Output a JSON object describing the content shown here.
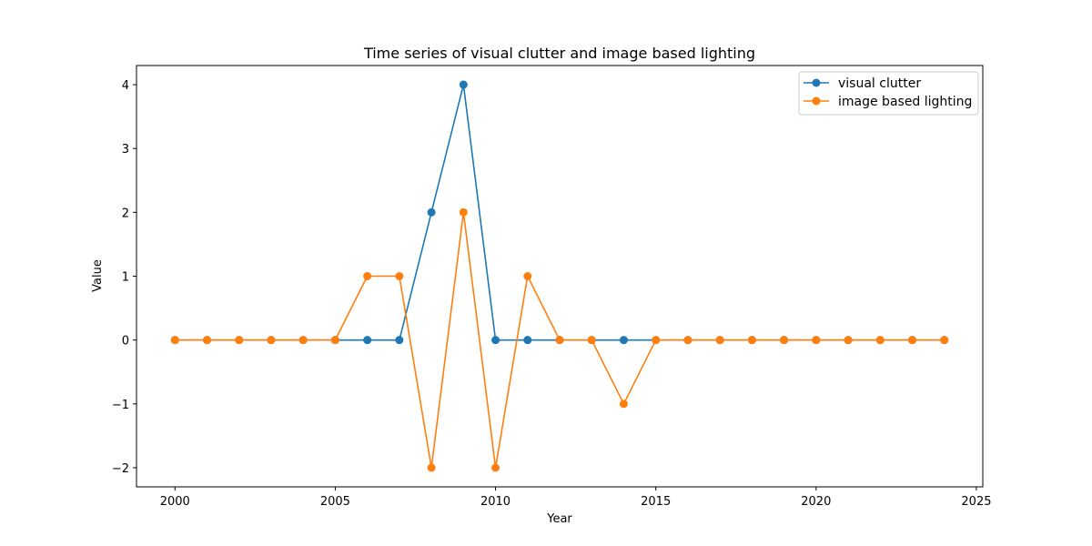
{
  "chart_data": {
    "type": "line",
    "title": "Time series of visual clutter and image based lighting",
    "xlabel": "Year",
    "ylabel": "Value",
    "x": [
      2000,
      2001,
      2002,
      2003,
      2004,
      2005,
      2006,
      2007,
      2008,
      2009,
      2010,
      2011,
      2012,
      2013,
      2014,
      2015,
      2016,
      2017,
      2018,
      2019,
      2020,
      2021,
      2022,
      2023,
      2024
    ],
    "xlim": [
      1998.8,
      2025.2
    ],
    "ylim": [
      -2.3,
      4.3
    ],
    "xticks": [
      2000,
      2005,
      2010,
      2015,
      2020,
      2025
    ],
    "yticks": [
      -2,
      -1,
      0,
      1,
      2,
      3,
      4
    ],
    "xtick_labels": [
      "2000",
      "2005",
      "2010",
      "2015",
      "2020",
      "2025"
    ],
    "ytick_labels": [
      "−2",
      "−1",
      "0",
      "1",
      "2",
      "3",
      "4"
    ],
    "grid": false,
    "legend_position": "top-right",
    "series": [
      {
        "name": "visual clutter",
        "color": "#1f77b4",
        "marker": "circle",
        "values": [
          0,
          0,
          0,
          0,
          0,
          0,
          0,
          0,
          2,
          4,
          0,
          0,
          0,
          0,
          0,
          0,
          0,
          0,
          0,
          0,
          0,
          0,
          0,
          0,
          0
        ]
      },
      {
        "name": "image based lighting",
        "color": "#ff7f0e",
        "marker": "circle",
        "values": [
          0,
          0,
          0,
          0,
          0,
          0,
          1,
          1,
          -2,
          2,
          -2,
          1,
          0,
          0,
          -1,
          0,
          0,
          0,
          0,
          0,
          0,
          0,
          0,
          0,
          0
        ]
      }
    ]
  }
}
